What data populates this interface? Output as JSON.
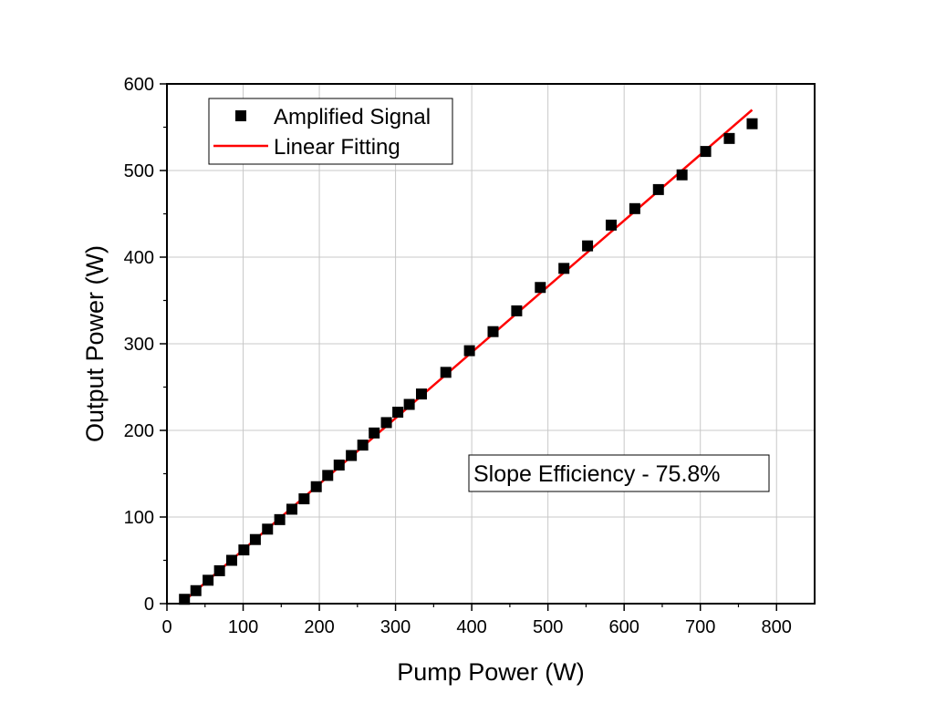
{
  "chart_data": {
    "type": "scatter",
    "xlabel": "Pump Power (W)",
    "ylabel": "Output Power (W)",
    "xlim": [
      0,
      850
    ],
    "ylim": [
      0,
      600
    ],
    "xticks": [
      0,
      100,
      200,
      300,
      400,
      500,
      600,
      700,
      800
    ],
    "yticks": [
      0,
      100,
      200,
      300,
      400,
      500,
      600
    ],
    "grid": true,
    "legend_position": "top-left",
    "series": [
      {
        "name": "Amplified Signal",
        "kind": "markers",
        "marker": "square",
        "color": "#000000",
        "x": [
          23,
          38,
          54,
          69,
          85,
          101,
          116,
          132,
          148,
          164,
          180,
          196,
          211,
          226,
          242,
          257,
          272,
          288,
          303,
          318,
          334,
          366,
          397,
          428,
          459,
          490,
          521,
          552,
          583,
          614,
          645,
          676,
          707,
          738,
          768
        ],
        "y": [
          5,
          15,
          27,
          38,
          50,
          62,
          74,
          86,
          97,
          109,
          121,
          135,
          148,
          160,
          171,
          183,
          197,
          209,
          221,
          230,
          242,
          267,
          292,
          314,
          338,
          365,
          387,
          413,
          437,
          456,
          478,
          495,
          522,
          537,
          554
        ]
      },
      {
        "name": "Linear Fitting",
        "kind": "line",
        "color": "#ff0000",
        "x": [
          25,
          768
        ],
        "y": [
          5,
          570
        ]
      }
    ],
    "annotations": [
      {
        "text": "Slope Efficiency - 75.8%"
      }
    ]
  }
}
